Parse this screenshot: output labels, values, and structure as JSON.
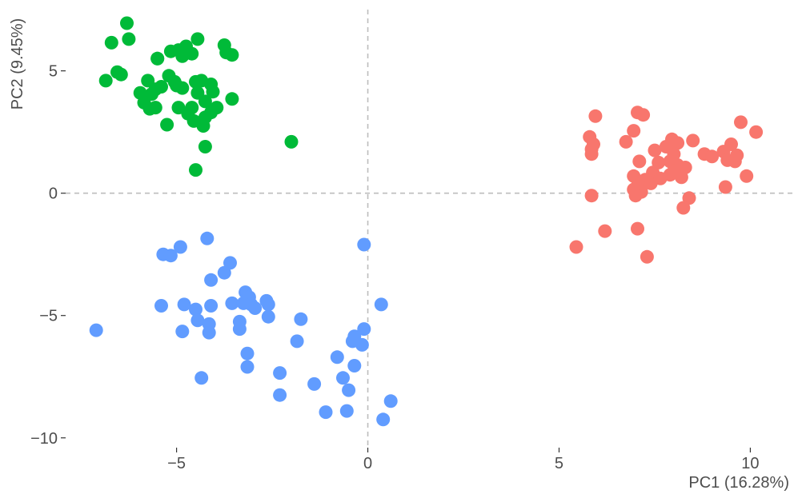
{
  "chart_data": {
    "type": "scatter",
    "title": "",
    "xlabel": "PC1 (16.28%)",
    "ylabel": "PC2 (9.45%)",
    "xlim": [
      -7.9,
      11.1
    ],
    "ylim": [
      -10.4,
      7.7
    ],
    "x_ticks": [
      -5,
      0,
      5,
      10
    ],
    "y_ticks": [
      -10,
      -5,
      0,
      5
    ],
    "x_tick_labels": [
      "−5",
      "0",
      "5",
      "10"
    ],
    "y_tick_labels": [
      "−10",
      "−5",
      "0",
      "5"
    ],
    "reference_lines": {
      "x": 0,
      "y": 0,
      "style": "dashed"
    },
    "grid": false,
    "legend": "none",
    "series": [
      {
        "color": "#00BA38",
        "points": [
          [
            -6.3,
            6.95
          ],
          [
            -6.7,
            6.15
          ],
          [
            -6.25,
            6.3
          ],
          [
            -6.55,
            4.95
          ],
          [
            -6.85,
            4.6
          ],
          [
            -6.45,
            4.85
          ],
          [
            -5.5,
            5.5
          ],
          [
            -5.5,
            5.5
          ],
          [
            -5.15,
            5.8
          ],
          [
            -4.95,
            5.85
          ],
          [
            -4.85,
            5.6
          ],
          [
            -4.75,
            6.0
          ],
          [
            -4.6,
            5.7
          ],
          [
            -4.45,
            6.3
          ],
          [
            -3.7,
            5.75
          ],
          [
            -3.75,
            6.05
          ],
          [
            -3.55,
            5.65
          ],
          [
            -5.0,
            4.4
          ],
          [
            -5.4,
            4.35
          ],
          [
            -5.55,
            4.25
          ],
          [
            -5.65,
            4.05
          ],
          [
            -5.75,
            4.6
          ],
          [
            -5.95,
            4.1
          ],
          [
            -5.85,
            3.7
          ],
          [
            -5.7,
            3.45
          ],
          [
            -5.55,
            3.5
          ],
          [
            -5.2,
            4.8
          ],
          [
            -5.05,
            4.55
          ],
          [
            -4.85,
            4.3
          ],
          [
            -4.5,
            4.55
          ],
          [
            -4.35,
            4.6
          ],
          [
            -4.45,
            4.1
          ],
          [
            -4.1,
            4.45
          ],
          [
            -4.05,
            4.15
          ],
          [
            -4.25,
            3.75
          ],
          [
            -3.95,
            3.5
          ],
          [
            -3.55,
            3.85
          ],
          [
            -4.6,
            3.5
          ],
          [
            -4.7,
            3.25
          ],
          [
            -4.55,
            2.95
          ],
          [
            -4.3,
            2.75
          ],
          [
            -5.25,
            2.8
          ],
          [
            -4.95,
            3.5
          ],
          [
            -4.25,
            3.1
          ],
          [
            -4.1,
            3.3
          ],
          [
            -4.25,
            1.9
          ],
          [
            -4.5,
            0.95
          ],
          [
            -2.0,
            2.1
          ]
        ]
      },
      {
        "color": "#F8766D",
        "points": [
          [
            5.95,
            3.15
          ],
          [
            7.05,
            3.3
          ],
          [
            7.2,
            3.2
          ],
          [
            5.8,
            2.3
          ],
          [
            5.85,
            1.8
          ],
          [
            5.85,
            1.6
          ],
          [
            5.9,
            2.0
          ],
          [
            6.95,
            2.55
          ],
          [
            6.75,
            2.1
          ],
          [
            7.5,
            1.75
          ],
          [
            7.95,
            2.2
          ],
          [
            8.1,
            2.05
          ],
          [
            8.5,
            2.15
          ],
          [
            8.0,
            1.6
          ],
          [
            7.8,
            1.9
          ],
          [
            7.1,
            1.3
          ],
          [
            7.6,
            1.25
          ],
          [
            7.9,
            1.3
          ],
          [
            8.1,
            1.15
          ],
          [
            8.3,
            1.05
          ],
          [
            7.45,
            0.85
          ],
          [
            6.95,
            0.7
          ],
          [
            7.25,
            0.55
          ],
          [
            7.4,
            0.4
          ],
          [
            7.05,
            0.3
          ],
          [
            6.95,
            0.15
          ],
          [
            7.15,
            0.05
          ],
          [
            7.0,
            -0.1
          ],
          [
            7.65,
            0.6
          ],
          [
            7.9,
            0.75
          ],
          [
            8.2,
            0.65
          ],
          [
            8.0,
            0.9
          ],
          [
            8.8,
            1.6
          ],
          [
            9.0,
            1.5
          ],
          [
            9.3,
            1.7
          ],
          [
            9.4,
            1.35
          ],
          [
            9.6,
            1.3
          ],
          [
            9.65,
            1.55
          ],
          [
            9.5,
            2.0
          ],
          [
            9.75,
            2.9
          ],
          [
            10.15,
            2.5
          ],
          [
            9.9,
            0.7
          ],
          [
            9.35,
            0.25
          ],
          [
            8.4,
            -0.2
          ],
          [
            8.25,
            -0.6
          ],
          [
            5.85,
            -0.1
          ],
          [
            6.2,
            -1.55
          ],
          [
            5.45,
            -2.2
          ],
          [
            7.05,
            -1.45
          ],
          [
            7.3,
            -2.6
          ]
        ]
      },
      {
        "color": "#619CFF",
        "points": [
          [
            -4.2,
            -1.85
          ],
          [
            -5.35,
            -2.5
          ],
          [
            -5.15,
            -2.55
          ],
          [
            -4.9,
            -2.2
          ],
          [
            -3.6,
            -2.85
          ],
          [
            -3.75,
            -3.25
          ],
          [
            -4.1,
            -3.55
          ],
          [
            -5.4,
            -4.6
          ],
          [
            -4.8,
            -4.55
          ],
          [
            -4.5,
            -4.75
          ],
          [
            -4.1,
            -4.6
          ],
          [
            -4.45,
            -5.2
          ],
          [
            -4.15,
            -5.35
          ],
          [
            -4.15,
            -5.7
          ],
          [
            -4.85,
            -5.65
          ],
          [
            -3.55,
            -4.5
          ],
          [
            -3.2,
            -4.05
          ],
          [
            -3.1,
            -4.25
          ],
          [
            -3.25,
            -4.5
          ],
          [
            -3.05,
            -4.55
          ],
          [
            -2.95,
            -4.7
          ],
          [
            -2.65,
            -4.4
          ],
          [
            -2.6,
            -4.55
          ],
          [
            -3.35,
            -5.25
          ],
          [
            -3.35,
            -5.55
          ],
          [
            -2.6,
            -5.05
          ],
          [
            -1.75,
            -5.15
          ],
          [
            -3.15,
            -6.55
          ],
          [
            -3.15,
            -7.1
          ],
          [
            -1.85,
            -6.05
          ],
          [
            -2.3,
            -7.35
          ],
          [
            -2.3,
            -8.25
          ],
          [
            -1.4,
            -7.8
          ],
          [
            -0.8,
            -6.7
          ],
          [
            -0.65,
            -7.55
          ],
          [
            -0.35,
            -7.05
          ],
          [
            -0.5,
            -8.05
          ],
          [
            -1.1,
            -8.95
          ],
          [
            -0.55,
            -8.9
          ],
          [
            -0.35,
            -5.85
          ],
          [
            -0.4,
            -6.05
          ],
          [
            -0.15,
            -6.2
          ],
          [
            -0.1,
            -5.55
          ],
          [
            -0.1,
            -2.1
          ],
          [
            0.35,
            -4.55
          ],
          [
            0.4,
            -9.25
          ],
          [
            0.6,
            -8.5
          ],
          [
            -7.1,
            -5.6
          ],
          [
            -4.35,
            -7.55
          ]
        ]
      }
    ]
  }
}
